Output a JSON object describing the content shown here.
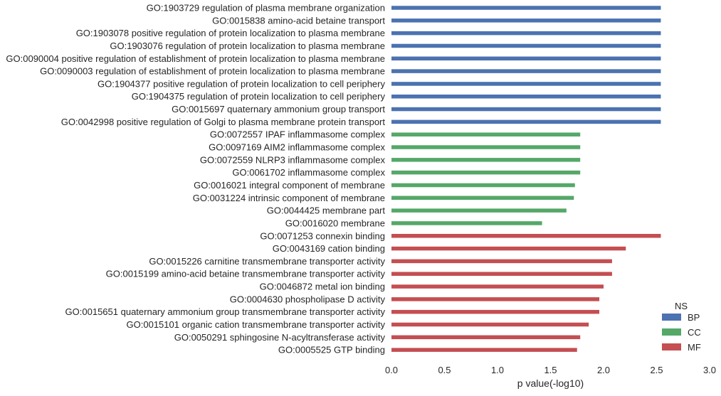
{
  "chart_data": {
    "type": "bar",
    "orientation": "horizontal",
    "title": "",
    "xlabel": "p value(-log10)",
    "ylabel": "",
    "xlim": [
      0,
      3.0
    ],
    "xticks": [
      "0.0",
      "0.5",
      "1.0",
      "1.5",
      "2.0",
      "2.5",
      "3.0"
    ],
    "grid": false,
    "legend": {
      "title": "NS",
      "placement": "bottom-right",
      "entries": [
        {
          "name": "BP",
          "color": "#4c72b0"
        },
        {
          "name": "CC",
          "color": "#55a868"
        },
        {
          "name": "MF",
          "color": "#c44e52"
        }
      ]
    },
    "categories": [
      "GO:1903729 regulation of plasma membrane organization",
      "GO:0015838 amino-acid betaine transport",
      "GO:1903078 positive regulation of protein localization to plasma membrane",
      "GO:1903076 regulation of protein localization to plasma membrane",
      "GO:0090004 positive regulation of establishment of protein localization to plasma membrane",
      "GO:0090003 regulation of establishment of protein localization to plasma membrane",
      "GO:1904377 positive regulation of protein localization to cell periphery",
      "GO:1904375 regulation of protein localization to cell periphery",
      "GO:0015697 quaternary ammonium group transport",
      "GO:0042998 positive regulation of Golgi to plasma membrane protein transport",
      "GO:0072557 IPAF inflammasome complex",
      "GO:0097169 AIM2 inflammasome complex",
      "GO:0072559 NLRP3 inflammasome complex",
      "GO:0061702 inflammasome complex",
      "GO:0016021 integral component of membrane",
      "GO:0031224 intrinsic component of membrane",
      "GO:0044425 membrane part",
      "GO:0016020 membrane",
      "GO:0071253 connexin binding",
      "GO:0043169 cation binding",
      "GO:0015226 carnitine transmembrane transporter activity",
      "GO:0015199 amino-acid betaine transmembrane transporter activity",
      "GO:0046872 metal ion binding",
      "GO:0004630 phospholipase D activity",
      "GO:0015651 quaternary ammonium group transmembrane transporter activity",
      "GO:0015101 organic cation transmembrane transporter activity",
      "GO:0050291 sphingosine N-acyltransferase activity",
      "GO:0005525 GTP binding"
    ],
    "values": [
      2.54,
      2.54,
      2.54,
      2.54,
      2.54,
      2.54,
      2.54,
      2.54,
      2.54,
      2.54,
      1.78,
      1.78,
      1.78,
      1.78,
      1.73,
      1.72,
      1.65,
      1.42,
      2.54,
      2.21,
      2.08,
      2.08,
      2.0,
      1.96,
      1.96,
      1.86,
      1.78,
      1.75
    ],
    "groups": [
      "BP",
      "BP",
      "BP",
      "BP",
      "BP",
      "BP",
      "BP",
      "BP",
      "BP",
      "BP",
      "CC",
      "CC",
      "CC",
      "CC",
      "CC",
      "CC",
      "CC",
      "CC",
      "MF",
      "MF",
      "MF",
      "MF",
      "MF",
      "MF",
      "MF",
      "MF",
      "MF",
      "MF"
    ]
  }
}
